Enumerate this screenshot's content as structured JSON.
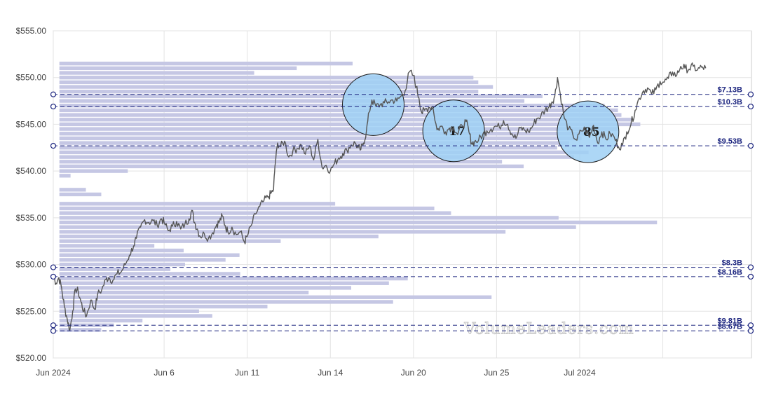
{
  "chart_data": {
    "type": "line",
    "title": "",
    "xlabel": "",
    "ylabel": "",
    "ylim": [
      520,
      555
    ],
    "y_ticks": [
      {
        "value": 520,
        "label": "$520.00"
      },
      {
        "value": 525,
        "label": "$525.00"
      },
      {
        "value": 530,
        "label": "$530.00"
      },
      {
        "value": 535,
        "label": "$535.00"
      },
      {
        "value": 540,
        "label": "$540.00"
      },
      {
        "value": 545,
        "label": "$545.00"
      },
      {
        "value": 550,
        "label": "$550.00"
      },
      {
        "value": 555,
        "label": "$555.00"
      }
    ],
    "xlim": [
      0,
      25.2
    ],
    "x_ticks": [
      {
        "value": 0,
        "label": "Jun 2024"
      },
      {
        "value": 4,
        "label": "Jun 6"
      },
      {
        "value": 7,
        "label": "Jun 11"
      },
      {
        "value": 10,
        "label": "Jun 14"
      },
      {
        "value": 13,
        "label": "Jun 20"
      },
      {
        "value": 16,
        "label": "Jun 25"
      },
      {
        "value": 19,
        "label": "Jul 2024"
      },
      {
        "value": 22,
        "label": ""
      }
    ],
    "grid": true,
    "price_series": [
      [
        0.0,
        528.8
      ],
      [
        0.1,
        528.0
      ],
      [
        0.2,
        528.6
      ],
      [
        0.3,
        527.5
      ],
      [
        0.4,
        525.5
      ],
      [
        0.5,
        524.2
      ],
      [
        0.6,
        523.0
      ],
      [
        0.7,
        525.0
      ],
      [
        0.8,
        527.4
      ],
      [
        0.9,
        527.1
      ],
      [
        1.0,
        526.0
      ],
      [
        1.1,
        525.0
      ],
      [
        1.2,
        524.5
      ],
      [
        1.35,
        526.2
      ],
      [
        1.5,
        525.2
      ],
      [
        1.6,
        526.8
      ],
      [
        1.75,
        527.3
      ],
      [
        1.9,
        528.4
      ],
      [
        2.0,
        528.6
      ],
      [
        2.15,
        528.3
      ],
      [
        2.3,
        529.0
      ],
      [
        2.45,
        529.2
      ],
      [
        2.6,
        530.0
      ],
      [
        2.75,
        531.0
      ],
      [
        2.9,
        532.0
      ],
      [
        3.0,
        532.8
      ],
      [
        3.15,
        534.0
      ],
      [
        3.3,
        534.8
      ],
      [
        3.45,
        534.5
      ],
      [
        3.6,
        534.7
      ],
      [
        3.75,
        534.2
      ],
      [
        3.9,
        534.9
      ],
      [
        4.0,
        534.5
      ],
      [
        4.15,
        533.6
      ],
      [
        4.3,
        534.1
      ],
      [
        4.45,
        534.6
      ],
      [
        4.6,
        533.8
      ],
      [
        4.75,
        534.3
      ],
      [
        4.9,
        534.9
      ],
      [
        5.0,
        535.8
      ],
      [
        5.1,
        534.5
      ],
      [
        5.2,
        533.8
      ],
      [
        5.3,
        533.0
      ],
      [
        5.45,
        533.3
      ],
      [
        5.6,
        532.8
      ],
      [
        5.75,
        533.4
      ],
      [
        5.9,
        534.3
      ],
      [
        6.0,
        534.6
      ],
      [
        6.1,
        535.2
      ],
      [
        6.2,
        534.2
      ],
      [
        6.3,
        533.5
      ],
      [
        6.45,
        534.0
      ],
      [
        6.6,
        533.2
      ],
      [
        6.75,
        533.5
      ],
      [
        6.9,
        532.4
      ],
      [
        7.0,
        533.0
      ],
      [
        7.15,
        534.2
      ],
      [
        7.3,
        535.4
      ],
      [
        7.45,
        536.2
      ],
      [
        7.6,
        536.8
      ],
      [
        7.75,
        537.2
      ],
      [
        7.85,
        537.6
      ],
      [
        7.95,
        538.0
      ],
      [
        8.0,
        540.5
      ],
      [
        8.1,
        543.0
      ],
      [
        8.2,
        542.6
      ],
      [
        8.35,
        543.2
      ],
      [
        8.5,
        541.5
      ],
      [
        8.65,
        542.2
      ],
      [
        8.8,
        542.4
      ],
      [
        8.95,
        542.8
      ],
      [
        9.1,
        541.8
      ],
      [
        9.25,
        542.7
      ],
      [
        9.4,
        541.2
      ],
      [
        9.55,
        543.4
      ],
      [
        9.7,
        540.4
      ],
      [
        9.85,
        540.6
      ],
      [
        10.0,
        540.0
      ],
      [
        10.15,
        540.8
      ],
      [
        10.3,
        541.4
      ],
      [
        10.45,
        541.9
      ],
      [
        10.6,
        542.2
      ],
      [
        10.75,
        542.8
      ],
      [
        10.9,
        543.0
      ],
      [
        11.0,
        542.5
      ],
      [
        11.1,
        542.3
      ],
      [
        11.2,
        543.0
      ],
      [
        11.3,
        544.2
      ],
      [
        11.4,
        546.3
      ],
      [
        11.5,
        547.6
      ],
      [
        11.65,
        546.9
      ],
      [
        11.8,
        547.1
      ],
      [
        11.95,
        547.3
      ],
      [
        12.1,
        547.4
      ],
      [
        12.25,
        547.6
      ],
      [
        12.4,
        547.5
      ],
      [
        12.55,
        548.0
      ],
      [
        12.7,
        548.6
      ],
      [
        12.85,
        550.6
      ],
      [
        13.0,
        550.2
      ],
      [
        13.1,
        549.0
      ],
      [
        13.2,
        547.8
      ],
      [
        13.3,
        546.2
      ],
      [
        13.4,
        546.5
      ],
      [
        13.55,
        546.8
      ],
      [
        13.7,
        546.9
      ],
      [
        13.85,
        544.4
      ],
      [
        14.0,
        544.8
      ],
      [
        14.15,
        544.2
      ],
      [
        14.3,
        544.6
      ],
      [
        14.45,
        544.7
      ],
      [
        14.6,
        543.9
      ],
      [
        14.75,
        544.9
      ],
      [
        14.9,
        545.3
      ],
      [
        15.0,
        544.2
      ],
      [
        15.1,
        543.0
      ],
      [
        15.2,
        543.1
      ],
      [
        15.35,
        543.3
      ],
      [
        15.5,
        543.9
      ],
      [
        15.65,
        544.3
      ],
      [
        15.8,
        544.5
      ],
      [
        15.95,
        544.8
      ],
      [
        16.1,
        544.7
      ],
      [
        16.25,
        545.4
      ],
      [
        16.4,
        545.0
      ],
      [
        16.55,
        544.0
      ],
      [
        16.7,
        543.5
      ],
      [
        16.85,
        544.6
      ],
      [
        17.0,
        544.4
      ],
      [
        17.15,
        544.2
      ],
      [
        17.3,
        544.8
      ],
      [
        17.45,
        545.6
      ],
      [
        17.6,
        545.9
      ],
      [
        17.75,
        546.5
      ],
      [
        17.9,
        546.9
      ],
      [
        18.0,
        547.4
      ],
      [
        18.1,
        548.0
      ],
      [
        18.2,
        550.0
      ],
      [
        18.3,
        548.2
      ],
      [
        18.45,
        545.6
      ],
      [
        18.6,
        544.5
      ],
      [
        18.75,
        543.9
      ],
      [
        18.9,
        543.3
      ],
      [
        19.05,
        544.3
      ],
      [
        19.2,
        544.5
      ],
      [
        19.35,
        543.6
      ],
      [
        19.5,
        544.9
      ],
      [
        19.65,
        543.0
      ],
      [
        19.8,
        544.2
      ],
      [
        19.95,
        543.4
      ],
      [
        20.1,
        544.0
      ],
      [
        20.25,
        543.6
      ],
      [
        20.4,
        542.6
      ],
      [
        20.55,
        542.8
      ],
      [
        20.7,
        544.2
      ],
      [
        20.85,
        545.0
      ],
      [
        21.0,
        546.5
      ],
      [
        21.15,
        547.8
      ],
      [
        21.3,
        548.6
      ],
      [
        21.45,
        548.9
      ],
      [
        21.6,
        548.2
      ],
      [
        21.75,
        548.7
      ],
      [
        21.9,
        549.6
      ],
      [
        22.05,
        549.5
      ],
      [
        22.2,
        549.9
      ],
      [
        22.35,
        550.6
      ],
      [
        22.5,
        550.2
      ],
      [
        22.65,
        551.2
      ],
      [
        22.8,
        551.0
      ],
      [
        22.95,
        550.9
      ],
      [
        23.1,
        551.2
      ],
      [
        23.25,
        550.8
      ],
      [
        23.4,
        551.1
      ],
      [
        23.55,
        551.0
      ]
    ],
    "volume_profile": {
      "band_height": 0.8,
      "bands": [
        [
          551.5,
          0.42
        ],
        [
          551.0,
          0.34
        ],
        [
          550.5,
          0.279
        ],
        [
          550.0,
          0.593
        ],
        [
          549.5,
          0.6
        ],
        [
          549.0,
          0.621
        ],
        [
          548.5,
          0.6
        ],
        [
          548.0,
          0.692
        ],
        [
          547.5,
          0.666
        ],
        [
          547.0,
          0.781
        ],
        [
          546.5,
          0.8
        ],
        [
          546.0,
          0.805
        ],
        [
          545.5,
          0.82
        ],
        [
          545.0,
          0.832
        ],
        [
          544.5,
          0.8
        ],
        [
          544.0,
          0.76
        ],
        [
          543.5,
          0.748
        ],
        [
          543.0,
          0.73
        ],
        [
          542.5,
          0.713
        ],
        [
          542.0,
          0.758
        ],
        [
          541.5,
          0.737
        ],
        [
          541.0,
          0.634
        ],
        [
          540.5,
          0.665
        ],
        [
          540.0,
          0.098
        ],
        [
          539.5,
          0.016
        ],
        [
          538.0,
          0.038
        ],
        [
          537.5,
          0.06
        ],
        [
          536.5,
          0.395
        ],
        [
          536.0,
          0.537
        ],
        [
          535.5,
          0.561
        ],
        [
          535.0,
          0.715
        ],
        [
          534.5,
          0.856
        ],
        [
          534.0,
          0.74
        ],
        [
          533.5,
          0.639
        ],
        [
          533.0,
          0.457
        ],
        [
          532.5,
          0.317
        ],
        [
          532.0,
          0.136
        ],
        [
          531.5,
          0.178
        ],
        [
          531.0,
          0.258
        ],
        [
          530.5,
          0.238
        ],
        [
          530.0,
          0.18
        ],
        [
          529.5,
          0.159
        ],
        [
          529.0,
          0.259
        ],
        [
          528.5,
          0.499
        ],
        [
          528.0,
          0.472
        ],
        [
          527.5,
          0.418
        ],
        [
          527.0,
          0.357
        ],
        [
          526.5,
          0.619
        ],
        [
          526.0,
          0.478
        ],
        [
          525.5,
          0.298
        ],
        [
          525.0,
          0.2
        ],
        [
          524.5,
          0.219
        ],
        [
          524.0,
          0.119
        ],
        [
          523.5,
          0.078
        ],
        [
          523.0,
          0.06
        ]
      ]
    },
    "levels": [
      {
        "price": 548.2,
        "label": "$7.13B"
      },
      {
        "price": 546.9,
        "label": "$10.3B"
      },
      {
        "price": 542.7,
        "label": "$9.53B"
      },
      {
        "price": 529.7,
        "label": "$8.3B"
      },
      {
        "price": 528.7,
        "label": "$8.16B"
      },
      {
        "price": 523.5,
        "label": "$9.81B"
      },
      {
        "price": 522.9,
        "label": "$8.67B"
      }
    ],
    "bubbles": [
      {
        "x": 11.55,
        "y": 547.1,
        "label": ""
      },
      {
        "x": 14.45,
        "y": 544.3,
        "label": "17"
      },
      {
        "x": 19.3,
        "y": 544.2,
        "label": "85"
      }
    ],
    "watermark": "VolumeLeaders.com",
    "colors": {
      "price_line": "#555555",
      "volume_band": "#c5c7e4",
      "level_line": "#1a237e",
      "bubble_fill": "#9fd0f5",
      "bubble_stroke": "#1a1a1a",
      "grid": "#e3e3e3"
    }
  }
}
